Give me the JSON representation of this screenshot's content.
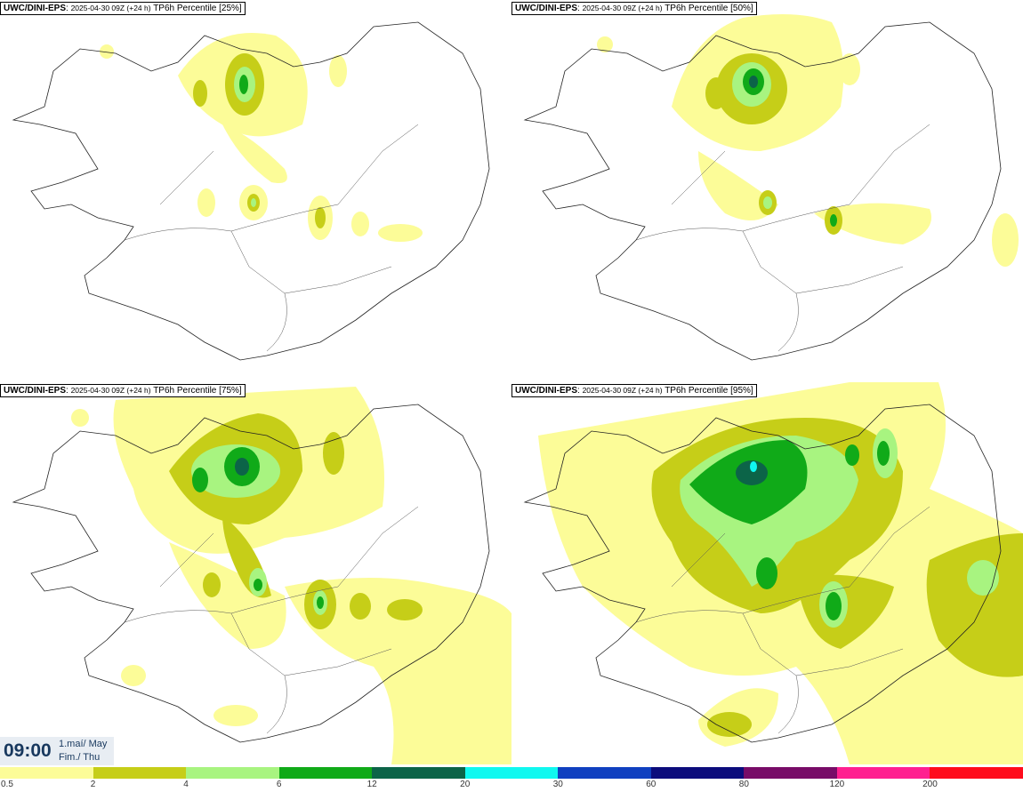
{
  "panels": [
    {
      "model": "UWC/DINI-EPS",
      "run": "2025-04-30 09Z (+24 h)",
      "product": "TP6h Percentile [25%]"
    },
    {
      "model": "UWC/DINI-EPS",
      "run": "2025-04-30 09Z (+24 h)",
      "product": "TP6h Percentile [50%]"
    },
    {
      "model": "UWC/DINI-EPS",
      "run": "2025-04-30 09Z (+24 h)",
      "product": "TP6h Percentile [75%]"
    },
    {
      "model": "UWC/DINI-EPS",
      "run": "2025-04-30 09Z (+24 h)",
      "product": "TP6h Percentile [95%]"
    }
  ],
  "valid_time": {
    "time": "09:00",
    "date_line1": "1.maí/ May",
    "date_line2": "Fim./ Thu"
  },
  "legend": {
    "colors": [
      "#fcfc98",
      "#c6ce18",
      "#a8f480",
      "#10aa18",
      "#0c6448",
      "#10f8f0",
      "#1040c0",
      "#0c0c7c",
      "#780c68",
      "#ff2090",
      "#ff0c1c"
    ],
    "labels": [
      "0.5",
      "2",
      "4",
      "6",
      "12",
      "20",
      "30",
      "60",
      "80",
      "120",
      "200"
    ]
  }
}
